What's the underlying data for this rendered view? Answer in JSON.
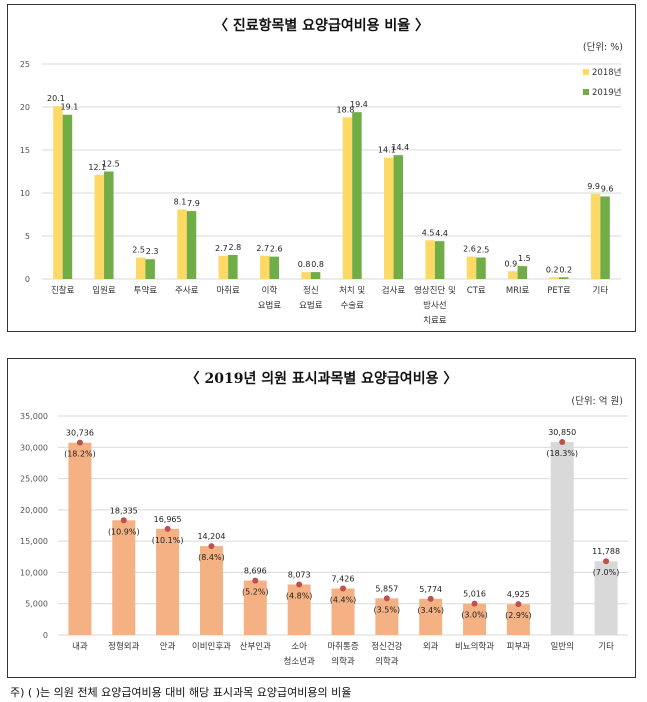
{
  "colors": {
    "y2018": "#ffd966",
    "y2019": "#70ad47",
    "clinic_bar": "#f4b183",
    "other_bar": "#d9d9d9",
    "dot": "#c0504d",
    "grid": "#d9d9d9"
  },
  "chart_data": [
    {
      "type": "bar",
      "title": "〈 진료항목별 요양급여비용 비율 〉",
      "unit": "(단위: %)",
      "categories": [
        "진찰료",
        "입원료",
        "투약료",
        "주사료",
        "마취료",
        "이학\n요법료",
        "정신\n요법료",
        "처치 및\n수술료",
        "검사료",
        "영상진단 및\n방사선\n치료료",
        "CT료",
        "MRI료",
        "PET료",
        "기타"
      ],
      "series": [
        {
          "name": "2018년",
          "values": [
            20.1,
            12.1,
            2.5,
            8.1,
            2.7,
            2.7,
            0.8,
            18.8,
            14.1,
            4.5,
            2.6,
            0.9,
            0.2,
            9.9
          ]
        },
        {
          "name": "2019년",
          "values": [
            19.1,
            12.5,
            2.3,
            7.9,
            2.8,
            2.6,
            0.8,
            19.4,
            14.4,
            4.4,
            2.5,
            1.5,
            0.2,
            9.6
          ]
        }
      ],
      "value_labels": [
        [
          "20.1",
          "12.1",
          "2.5",
          "8.1",
          "2.7",
          "2.7",
          "0.8",
          "18.8",
          "14.1",
          "4.5",
          "2.6",
          "0.9",
          "0.2",
          "9.9"
        ],
        [
          "19.1",
          "12.5",
          "2.3",
          "7.9",
          "2.8",
          "2.6",
          "0.8",
          "19.4",
          "14.4",
          "4.4",
          "2.5",
          "1.5",
          "0.2",
          "9.6"
        ]
      ],
      "ylim": [
        0,
        25
      ],
      "yticks": [
        0,
        5,
        10,
        15,
        20,
        25
      ],
      "grid": true,
      "legend": "top-right"
    },
    {
      "type": "bar",
      "title": "〈 2019년 의원 표시과목별 요양급여비용 〉",
      "unit": "(단위: 억 원)",
      "categories": [
        "내과",
        "정형외과",
        "안과",
        "이비인후과",
        "산부인과",
        "소아\n청소년과",
        "마취통증\n의학과",
        "정신건강\n의학과",
        "외과",
        "비뇨의학과",
        "피부과",
        "일반의",
        "기타"
      ],
      "values": [
        30736,
        18335,
        16965,
        14204,
        8696,
        8073,
        7426,
        5857,
        5774,
        5016,
        4925,
        30850,
        11788
      ],
      "value_labels": [
        "30,736",
        "18,335",
        "16,965",
        "14,204",
        "8,696",
        "8,073",
        "7,426",
        "5,857",
        "5,774",
        "5,016",
        "4,925",
        "30,850",
        "11,788"
      ],
      "share_labels": [
        "(18.2%)",
        "(10.9%)",
        "(10.1%)",
        "(8.4%)",
        "(5.2%)",
        "(4.8%)",
        "(4.4%)",
        "(3.5%)",
        "(3.4%)",
        "(3.0%)",
        "(2.9%)",
        "(18.3%)",
        "(7.0%)"
      ],
      "ylim": [
        0,
        35000
      ],
      "yticks": [
        0,
        5000,
        10000,
        15000,
        20000,
        25000,
        30000,
        35000
      ],
      "ytick_labels": [
        "0",
        "5,000",
        "10,000",
        "15,000",
        "20,000",
        "25,000",
        "30,000",
        "35,000"
      ],
      "grid": true,
      "legend": "none"
    }
  ],
  "note": "주) ( )는 의원 전체 요양급여비용 대비 해당 표시과목 요양급여비용의 비율"
}
